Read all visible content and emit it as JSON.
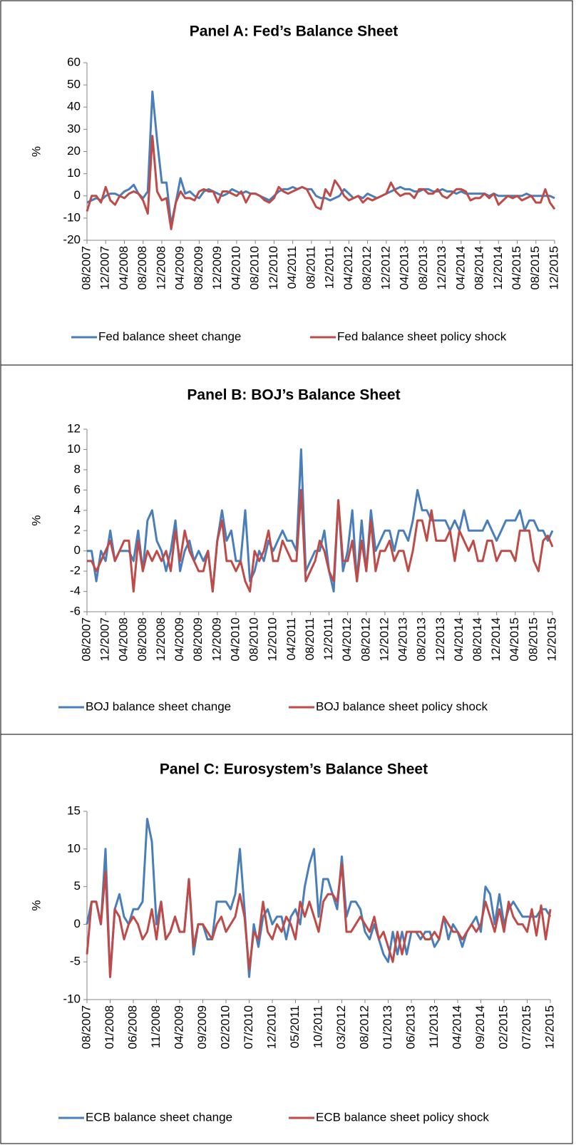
{
  "chart_data": [
    {
      "type": "line",
      "title": "Panel A: Fed’s Balance Sheet",
      "ylabel": "%",
      "categories": [
        "08/2007",
        null,
        null,
        null,
        "12/2007",
        null,
        null,
        null,
        "04/2008",
        null,
        null,
        null,
        "08/2008",
        null,
        null,
        null,
        "12/2008",
        null,
        null,
        null,
        "04/2009",
        null,
        null,
        null,
        "08/2009",
        null,
        null,
        null,
        "12/2009",
        null,
        null,
        null,
        "04/2010",
        null,
        null,
        null,
        "08/2010",
        null,
        null,
        null,
        "12/2010",
        null,
        null,
        null,
        "04/2011",
        null,
        null,
        null,
        "08/2011",
        null,
        null,
        null,
        "12/2011",
        null,
        null,
        null,
        "04/2012",
        null,
        null,
        null,
        "08/2012",
        null,
        null,
        null,
        "12/2012",
        null,
        null,
        null,
        "04/2013",
        null,
        null,
        null,
        "08/2013",
        null,
        null,
        null,
        "12/2013",
        null,
        null,
        null,
        "04/2014",
        null,
        null,
        null,
        "08/2014",
        null,
        null,
        null,
        "12/2014",
        null,
        null,
        null,
        "04/2015",
        null,
        null,
        null,
        "08/2015",
        null,
        null,
        null,
        "12/2015"
      ],
      "ylim": [
        -20,
        60
      ],
      "yticks": [
        -20,
        -10,
        0,
        10,
        20,
        30,
        40,
        50,
        60
      ],
      "yticks_labels": null,
      "series": [
        {
          "name": "Fed balance sheet change",
          "color": "#4a7ebb",
          "values": [
            -3,
            -2,
            -1,
            -2,
            0,
            1,
            1,
            0,
            2,
            3,
            5,
            1,
            -1,
            2,
            47,
            25,
            6,
            6,
            -13,
            -3,
            8,
            1,
            2,
            0,
            -1,
            2,
            3,
            2,
            1,
            0,
            1,
            3,
            2,
            1,
            2,
            1,
            1,
            0,
            -1,
            -2,
            0,
            2,
            3,
            3,
            4,
            3,
            4,
            3,
            3,
            0,
            -1,
            -1,
            -2,
            -1,
            0,
            3,
            1,
            -1,
            0,
            -1,
            1,
            0,
            -1,
            0,
            1,
            2,
            3,
            4,
            3,
            3,
            2,
            2,
            3,
            3,
            2,
            2,
            3,
            2,
            2,
            1,
            2,
            1,
            1,
            1,
            1,
            1,
            0,
            1,
            0,
            0,
            0,
            0,
            0,
            0,
            1,
            0,
            0,
            0,
            0,
            0,
            -1
          ]
        },
        {
          "name": "Fed balance sheet policy shock",
          "color": "#be4b48",
          "values": [
            -7,
            0,
            0,
            -3,
            4,
            -2,
            -4,
            0,
            -1,
            1,
            2,
            1,
            -2,
            -8,
            27,
            2,
            -2,
            -1,
            -15,
            -3,
            2,
            -1,
            -1,
            -2,
            2,
            3,
            2,
            2,
            -3,
            2,
            2,
            1,
            0,
            2,
            -3,
            1,
            1,
            0,
            -2,
            -3,
            -1,
            4,
            2,
            1,
            2,
            3,
            4,
            3,
            -1,
            -5,
            -6,
            3,
            0,
            7,
            4,
            0,
            -2,
            -1,
            0,
            -3,
            -1,
            -2,
            -1,
            0,
            1,
            6,
            2,
            0,
            1,
            1,
            -1,
            3,
            3,
            1,
            1,
            3,
            0,
            -1,
            1,
            3,
            3,
            2,
            -2,
            -1,
            -1,
            1,
            -1,
            1,
            -4,
            -2,
            0,
            -1,
            0,
            -2,
            -1,
            0,
            -3,
            -3,
            3,
            -3,
            -6
          ]
        }
      ]
    },
    {
      "type": "line",
      "title": "Panel B: BOJ’s Balance Sheet",
      "ylabel": "%",
      "categories": [
        "08/2007",
        null,
        null,
        null,
        "12/2007",
        null,
        null,
        null,
        "04/2008",
        null,
        null,
        null,
        "08/2008",
        null,
        null,
        null,
        "12/2008",
        null,
        null,
        null,
        "04/2009",
        null,
        null,
        null,
        "08/2009",
        null,
        null,
        null,
        "12/2009",
        null,
        null,
        null,
        "04/2010",
        null,
        null,
        null,
        "08/2010",
        null,
        null,
        null,
        "12/2010",
        null,
        null,
        null,
        "04/2011",
        null,
        null,
        null,
        "08/2011",
        null,
        null,
        null,
        "12/2011",
        null,
        null,
        null,
        "04/2012",
        null,
        null,
        null,
        "08/2012",
        null,
        null,
        null,
        "12/2012",
        null,
        null,
        null,
        "04/2013",
        null,
        null,
        null,
        "08/2013",
        null,
        null,
        null,
        "12/2013",
        null,
        null,
        null,
        "04/2014",
        null,
        null,
        null,
        "08/2014",
        null,
        null,
        null,
        "12/2014",
        null,
        null,
        null,
        "04/2015",
        null,
        null,
        null,
        "08/2015",
        null,
        null,
        null,
        "12/2015"
      ],
      "ylim": [
        -6,
        12
      ],
      "yticks": [
        -6,
        -4,
        -2,
        0,
        2,
        4,
        6,
        8,
        10,
        12
      ],
      "series": [
        {
          "name": "BOJ balance sheet change",
          "color": "#4a7ebb",
          "values": [
            0,
            0,
            -3,
            0,
            -1,
            2,
            -1,
            0,
            0,
            0,
            -1,
            2,
            -2,
            3,
            4,
            1,
            0,
            -2,
            0,
            3,
            -2,
            0,
            1,
            -1,
            0,
            -1,
            0,
            -4,
            1,
            4,
            1,
            2,
            -1,
            -1,
            4,
            -3,
            -2,
            0,
            -1,
            1,
            0,
            1,
            2,
            1,
            1,
            0,
            10,
            -2,
            -1,
            0,
            0,
            2,
            -2,
            -4,
            5,
            -2,
            0,
            4,
            -3,
            3,
            -2,
            4,
            0,
            1,
            2,
            2,
            0,
            2,
            2,
            1,
            3,
            6,
            4,
            4,
            3,
            3,
            3,
            3,
            2,
            3,
            2,
            4,
            2,
            2,
            2,
            2,
            3,
            2,
            1,
            2,
            3,
            3,
            3,
            4,
            2,
            3,
            3,
            2,
            2,
            1,
            2
          ]
        },
        {
          "name": "BOJ balance sheet policy shock",
          "color": "#be4b48",
          "values": [
            -1,
            -1,
            -2,
            -1,
            0,
            1,
            -1,
            0,
            1,
            1,
            -4,
            1,
            -2,
            0,
            -1,
            0,
            -1,
            0,
            -2,
            2,
            -1,
            2,
            0,
            -1,
            -2,
            -2,
            0,
            -4,
            1,
            3,
            -1,
            -1,
            -2,
            -1,
            -3,
            -4,
            0,
            -1,
            0,
            2,
            -1,
            -1,
            1,
            0,
            -1,
            -1,
            6,
            -3,
            -2,
            -1,
            1,
            0,
            -2,
            -3,
            5,
            -1,
            -1,
            1,
            -3,
            1,
            -2,
            3,
            -2,
            0,
            0,
            1,
            -1,
            0,
            0,
            -2,
            0,
            3,
            3,
            1,
            4,
            1,
            1,
            1,
            2,
            -1,
            2,
            1,
            0,
            1,
            -1,
            -1,
            1,
            1,
            -1,
            0,
            0,
            0,
            -1,
            2,
            2,
            2,
            -1,
            -2,
            1,
            1.5,
            0.4
          ]
        }
      ]
    },
    {
      "type": "line",
      "title": "Panel C: Eurosystem’s Balance Sheet",
      "ylabel": "%",
      "categories": [
        "08/2007",
        null,
        null,
        null,
        null,
        "01/2008",
        null,
        null,
        null,
        null,
        "06/2008",
        null,
        null,
        null,
        null,
        "11/2008",
        null,
        null,
        null,
        null,
        "04/2009",
        null,
        null,
        null,
        null,
        "09/2009",
        null,
        null,
        null,
        null,
        "02/2010",
        null,
        null,
        null,
        null,
        "07/2010",
        null,
        null,
        null,
        null,
        "12/2010",
        null,
        null,
        null,
        null,
        "05/2011",
        null,
        null,
        null,
        null,
        "10/2011",
        null,
        null,
        null,
        null,
        "03/2012",
        null,
        null,
        null,
        null,
        "08/2012",
        null,
        null,
        null,
        null,
        "01/2013",
        null,
        null,
        null,
        null,
        "06/2013",
        null,
        null,
        null,
        null,
        "11/2013",
        null,
        null,
        null,
        null,
        "04/2014",
        null,
        null,
        null,
        null,
        "09/2014",
        null,
        null,
        null,
        null,
        "02/2015",
        null,
        null,
        null,
        null,
        "07/2015",
        null,
        null,
        null,
        null,
        "12/2015"
      ],
      "ylim": [
        -10,
        15
      ],
      "yticks": [
        -10,
        -5,
        0,
        5,
        10,
        15
      ],
      "series": [
        {
          "name": "ECB balance sheet change",
          "color": "#4a7ebb",
          "values": [
            0,
            3,
            3,
            0,
            10,
            -7,
            2,
            4,
            1,
            0,
            2,
            2,
            3,
            14,
            11,
            0,
            3,
            -2,
            -1,
            1,
            -1,
            -1,
            6,
            -4,
            0,
            0,
            -2,
            -2,
            3,
            3,
            3,
            2,
            4,
            10,
            2,
            -7,
            0,
            -3,
            1,
            2,
            0,
            1,
            1,
            -2,
            1,
            2,
            0,
            5,
            8,
            10,
            1,
            6,
            6,
            4,
            2,
            9,
            1,
            3,
            3,
            2,
            -1,
            -2,
            0,
            -2,
            -4,
            -5,
            -1,
            -4,
            -1,
            -4,
            -1,
            -1,
            -2,
            -1,
            -1,
            -3,
            -2,
            1,
            -2,
            0,
            -1,
            -3,
            -1,
            0,
            1,
            -1,
            5,
            4,
            0,
            4,
            0,
            2,
            3,
            2,
            1,
            1,
            1,
            1,
            2,
            2,
            1
          ]
        },
        {
          "name": "ECB balance sheet policy shock",
          "color": "#be4b48",
          "values": [
            -4,
            3,
            3,
            0,
            7,
            -7,
            2,
            1,
            -2,
            0,
            1,
            0,
            -2,
            -1,
            2,
            -2,
            3,
            -2,
            -1,
            1,
            -1,
            -1,
            6,
            -3,
            0,
            0,
            -1,
            -2,
            0,
            1,
            -1,
            0,
            1,
            4,
            1,
            -6,
            -1,
            -2,
            3,
            -1,
            -2,
            0,
            -1,
            1,
            0,
            -2,
            3,
            1,
            3,
            1,
            -1,
            3,
            4,
            4,
            3,
            8,
            -1,
            -1,
            0,
            1,
            0,
            -1,
            1,
            -2,
            -1,
            -3,
            -5,
            -1,
            -4,
            -1,
            -1,
            -1,
            -1,
            -2,
            -2,
            -1,
            -2,
            1,
            0,
            -1,
            -1,
            -2,
            -1,
            0,
            -1,
            0,
            3,
            1,
            -1,
            2,
            -1,
            3,
            1,
            0,
            0,
            -1,
            2,
            -1.5,
            2.5,
            -2,
            2
          ]
        }
      ]
    }
  ]
}
